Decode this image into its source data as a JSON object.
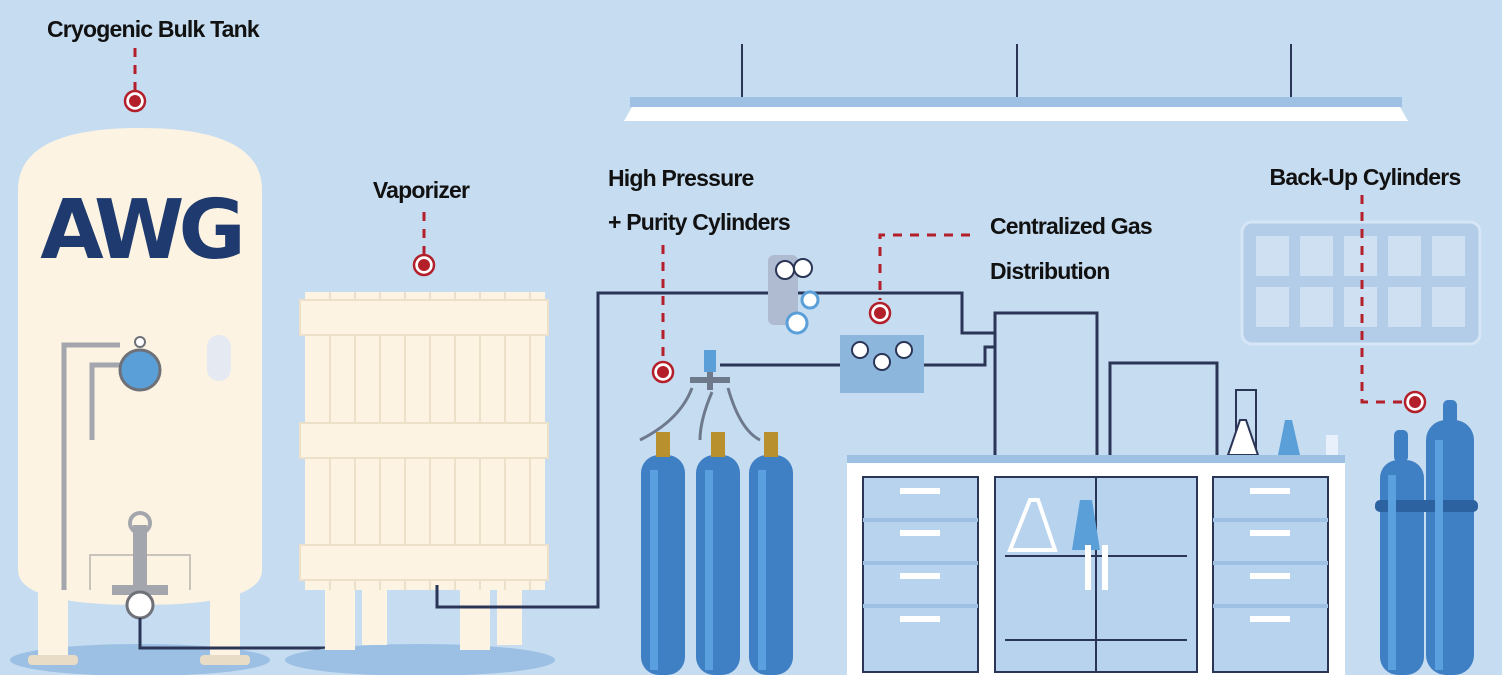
{
  "labels": [
    {
      "lines": [
        "Cryogenic Bulk Tank"
      ]
    },
    {
      "lines": [
        "Vaporizer"
      ]
    },
    {
      "lines": [
        "High Pressure",
        "+ Purity Cylinders"
      ]
    },
    {
      "lines": [
        "Centralized Gas",
        "Distribution"
      ]
    },
    {
      "lines": [
        "Back-Up Cylinders"
      ]
    }
  ],
  "logo": "AWG"
}
